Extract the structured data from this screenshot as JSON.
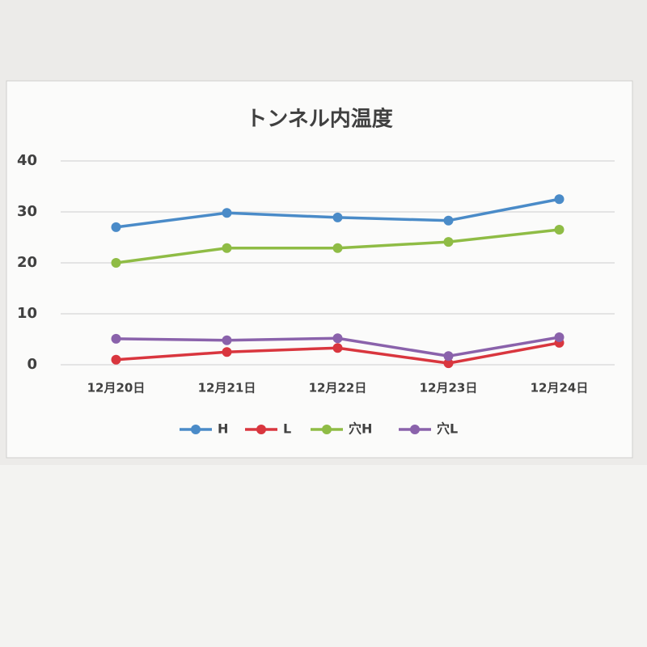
{
  "chart_data": {
    "type": "line",
    "title": "トンネル内温度",
    "categories": [
      "12月20日",
      "12月21日",
      "12月22日",
      "12月23日",
      "12月24日"
    ],
    "series": [
      {
        "name": "H",
        "color": "#4a8bc8",
        "values": [
          27,
          29.8,
          28.9,
          28.3,
          32.5
        ]
      },
      {
        "name": "L",
        "color": "#d9363e",
        "values": [
          1,
          2.5,
          3.3,
          0.3,
          4.3
        ]
      },
      {
        "name": "穴H",
        "color": "#8fbc45",
        "values": [
          20,
          22.9,
          22.9,
          24.1,
          26.5
        ]
      },
      {
        "name": "穴L",
        "color": "#8a62ab",
        "values": [
          5.1,
          4.8,
          5.2,
          1.7,
          5.4
        ]
      }
    ],
    "ylim": [
      0,
      40
    ],
    "yticks": [
      0,
      10,
      20,
      30,
      40
    ],
    "grid": true,
    "legend": "bottom"
  }
}
